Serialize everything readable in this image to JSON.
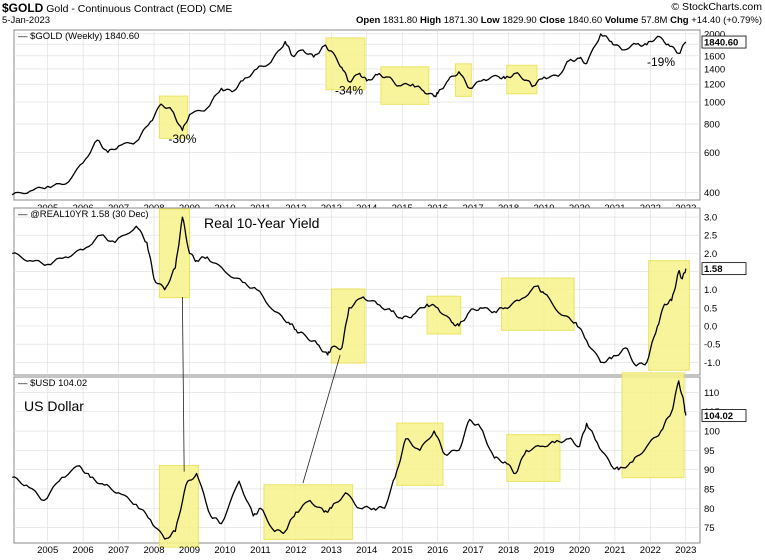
{
  "header": {
    "symbol": "$GOLD",
    "description": "Gold - Continuous Contract (EOD)",
    "exchange": "CME",
    "date": "5-Jan-2023",
    "open_label": "Open",
    "open": "1831.80",
    "high_label": "High",
    "high": "1871.30",
    "low_label": "Low",
    "low": "1829.90",
    "close_label": "Close",
    "close": "1840.60",
    "volume_label": "Volume",
    "volume": "57.8M",
    "chg_label": "Chg",
    "chg": "+14.40 (+0.79%)",
    "watermark": "© StockCharts.com"
  },
  "colors": {
    "line": "#000000",
    "highlight": "#f7f38a",
    "highlight_stroke": "#e8e04a",
    "grid": "#dddddd"
  },
  "chart_data": [
    {
      "type": "line",
      "legend": "$GOLD (Weekly) 1840.60",
      "last_value_label": "1840.60",
      "y_scale": "log",
      "ylim": [
        370,
        2080
      ],
      "y_ticks": [
        400,
        600,
        800,
        1000,
        1200,
        1400,
        1600,
        1800,
        2000
      ],
      "x_ticks": [
        2005,
        2006,
        2007,
        2008,
        2009,
        2010,
        2011,
        2012,
        2013,
        2014,
        2015,
        2016,
        2017,
        2018,
        2019,
        2020,
        2021,
        2022,
        2023
      ],
      "series": [
        {
          "points": [
            [
              2004.0,
              390
            ],
            [
              2004.5,
              405
            ],
            [
              2005.0,
              425
            ],
            [
              2005.5,
              435
            ],
            [
              2006.0,
              540
            ],
            [
              2006.4,
              680
            ],
            [
              2006.7,
              600
            ],
            [
              2007.0,
              640
            ],
            [
              2007.5,
              670
            ],
            [
              2007.9,
              820
            ],
            [
              2008.2,
              980
            ],
            [
              2008.5,
              920
            ],
            [
              2008.8,
              750
            ],
            [
              2009.0,
              880
            ],
            [
              2009.5,
              940
            ],
            [
              2009.9,
              1150
            ],
            [
              2010.2,
              1110
            ],
            [
              2010.5,
              1240
            ],
            [
              2010.9,
              1400
            ],
            [
              2011.3,
              1500
            ],
            [
              2011.7,
              1850
            ],
            [
              2011.9,
              1600
            ],
            [
              2012.2,
              1700
            ],
            [
              2012.5,
              1580
            ],
            [
              2012.8,
              1770
            ],
            [
              2013.0,
              1680
            ],
            [
              2013.3,
              1420
            ],
            [
              2013.5,
              1230
            ],
            [
              2013.8,
              1340
            ],
            [
              2014.0,
              1240
            ],
            [
              2014.3,
              1320
            ],
            [
              2014.6,
              1290
            ],
            [
              2014.9,
              1180
            ],
            [
              2015.3,
              1200
            ],
            [
              2015.6,
              1120
            ],
            [
              2015.9,
              1060
            ],
            [
              2016.0,
              1090
            ],
            [
              2016.3,
              1250
            ],
            [
              2016.6,
              1360
            ],
            [
              2016.9,
              1150
            ],
            [
              2017.3,
              1260
            ],
            [
              2017.7,
              1300
            ],
            [
              2017.9,
              1270
            ],
            [
              2018.2,
              1340
            ],
            [
              2018.5,
              1250
            ],
            [
              2018.7,
              1180
            ],
            [
              2019.0,
              1290
            ],
            [
              2019.4,
              1300
            ],
            [
              2019.7,
              1520
            ],
            [
              2020.0,
              1560
            ],
            [
              2020.2,
              1480
            ],
            [
              2020.6,
              2000
            ],
            [
              2020.9,
              1850
            ],
            [
              2021.2,
              1700
            ],
            [
              2021.6,
              1800
            ],
            [
              2021.9,
              1790
            ],
            [
              2022.2,
              1950
            ],
            [
              2022.5,
              1800
            ],
            [
              2022.8,
              1640
            ],
            [
              2023.0,
              1840.6
            ]
          ]
        }
      ],
      "highlight_ranges": [
        [
          2008.15,
          2008.95
        ],
        [
          2012.85,
          2013.95
        ],
        [
          2014.4,
          2015.75
        ],
        [
          2016.5,
          2016.95
        ],
        [
          2017.95,
          2018.8
        ]
      ],
      "annotations": [
        {
          "text": "-30%",
          "x": 2008.8,
          "y": 660
        },
        {
          "text": "-34%",
          "x": 2013.5,
          "y": 1080
        },
        {
          "text": "-19%",
          "x": 2022.3,
          "y": 1440
        }
      ]
    },
    {
      "type": "line",
      "legend": "@REAL10YR 1.58 (30 Dec)",
      "title": "Real 10-Year Yield",
      "last_value_label": "1.58",
      "ylim": [
        -1.35,
        3.25
      ],
      "y_ticks": [
        -1.0,
        -0.5,
        0.0,
        0.5,
        1.0,
        1.5,
        2.0,
        2.5,
        3.0
      ],
      "x_ticks": [],
      "series": [
        {
          "points": [
            [
              2004.0,
              2.0
            ],
            [
              2004.5,
              1.8
            ],
            [
              2005.0,
              1.7
            ],
            [
              2005.5,
              1.9
            ],
            [
              2006.0,
              2.1
            ],
            [
              2006.5,
              2.5
            ],
            [
              2006.9,
              2.3
            ],
            [
              2007.5,
              2.75
            ],
            [
              2007.8,
              2.3
            ],
            [
              2008.0,
              1.3
            ],
            [
              2008.3,
              1.0
            ],
            [
              2008.6,
              1.6
            ],
            [
              2008.8,
              3.0
            ],
            [
              2009.0,
              2.0
            ],
            [
              2009.2,
              1.8
            ],
            [
              2009.5,
              1.9
            ],
            [
              2010.0,
              1.5
            ],
            [
              2010.5,
              1.2
            ],
            [
              2010.9,
              1.0
            ],
            [
              2011.4,
              0.4
            ],
            [
              2011.8,
              0.1
            ],
            [
              2012.0,
              -0.1
            ],
            [
              2012.3,
              -0.3
            ],
            [
              2012.6,
              -0.5
            ],
            [
              2012.9,
              -0.8
            ],
            [
              2013.0,
              -0.6
            ],
            [
              2013.3,
              -0.6
            ],
            [
              2013.5,
              0.5
            ],
            [
              2013.9,
              0.8
            ],
            [
              2014.3,
              0.6
            ],
            [
              2014.7,
              0.4
            ],
            [
              2015.0,
              0.2
            ],
            [
              2015.3,
              0.3
            ],
            [
              2015.7,
              0.6
            ],
            [
              2016.0,
              0.5
            ],
            [
              2016.4,
              0.1
            ],
            [
              2016.6,
              0.0
            ],
            [
              2016.9,
              0.4
            ],
            [
              2017.2,
              0.5
            ],
            [
              2017.6,
              0.4
            ],
            [
              2017.9,
              0.5
            ],
            [
              2018.3,
              0.7
            ],
            [
              2018.8,
              1.1
            ],
            [
              2019.0,
              0.9
            ],
            [
              2019.5,
              0.3
            ],
            [
              2019.9,
              0.1
            ],
            [
              2020.2,
              -0.4
            ],
            [
              2020.6,
              -1.0
            ],
            [
              2020.9,
              -0.9
            ],
            [
              2021.3,
              -0.6
            ],
            [
              2021.6,
              -1.1
            ],
            [
              2021.9,
              -1.0
            ],
            [
              2022.2,
              0.0
            ],
            [
              2022.4,
              0.6
            ],
            [
              2022.6,
              0.7
            ],
            [
              2022.8,
              1.5
            ],
            [
              2022.9,
              1.3
            ],
            [
              2023.0,
              1.58
            ]
          ]
        }
      ],
      "highlight_ranges": [
        [
          2008.15,
          2009.0
        ],
        [
          2013.0,
          2013.95
        ],
        [
          2015.7,
          2016.65
        ],
        [
          2017.8,
          2019.85
        ],
        [
          2021.95,
          2023.1
        ]
      ],
      "annotations": []
    },
    {
      "type": "line",
      "legend": "$USD 104.02",
      "title": "US Dollar",
      "last_value_label": "104.02",
      "ylim": [
        71,
        114
      ],
      "y_ticks": [
        75,
        80,
        85,
        90,
        95,
        100,
        105,
        110
      ],
      "x_ticks": [
        2005,
        2006,
        2007,
        2008,
        2009,
        2010,
        2011,
        2012,
        2013,
        2014,
        2015,
        2016,
        2017,
        2018,
        2019,
        2020,
        2021,
        2022,
        2023
      ],
      "series": [
        {
          "points": [
            [
              2004.0,
              88
            ],
            [
              2004.4,
              86
            ],
            [
              2004.9,
              82
            ],
            [
              2005.4,
              88
            ],
            [
              2005.9,
              91
            ],
            [
              2006.2,
              88
            ],
            [
              2006.6,
              86
            ],
            [
              2007.0,
              84
            ],
            [
              2007.5,
              81
            ],
            [
              2007.9,
              77
            ],
            [
              2008.3,
              72
            ],
            [
              2008.6,
              74
            ],
            [
              2008.9,
              86
            ],
            [
              2009.2,
              89
            ],
            [
              2009.6,
              78
            ],
            [
              2009.9,
              76
            ],
            [
              2010.4,
              87
            ],
            [
              2010.8,
              78
            ],
            [
              2011.0,
              80
            ],
            [
              2011.4,
              74
            ],
            [
              2011.7,
              74
            ],
            [
              2012.0,
              79
            ],
            [
              2012.4,
              82
            ],
            [
              2012.8,
              79
            ],
            [
              2013.0,
              80
            ],
            [
              2013.4,
              84
            ],
            [
              2013.8,
              80
            ],
            [
              2014.2,
              80
            ],
            [
              2014.5,
              80
            ],
            [
              2014.8,
              88
            ],
            [
              2015.1,
              98
            ],
            [
              2015.5,
              95
            ],
            [
              2015.9,
              100
            ],
            [
              2016.2,
              94
            ],
            [
              2016.6,
              95
            ],
            [
              2016.9,
              103
            ],
            [
              2017.2,
              101
            ],
            [
              2017.6,
              93
            ],
            [
              2017.9,
              92
            ],
            [
              2018.2,
              89
            ],
            [
              2018.5,
              95
            ],
            [
              2018.9,
              96
            ],
            [
              2019.3,
              97
            ],
            [
              2019.7,
              98
            ],
            [
              2020.0,
              96
            ],
            [
              2020.2,
              102
            ],
            [
              2020.5,
              97
            ],
            [
              2020.9,
              91
            ],
            [
              2021.1,
              90
            ],
            [
              2021.5,
              92
            ],
            [
              2021.9,
              96
            ],
            [
              2022.3,
              100
            ],
            [
              2022.6,
              105
            ],
            [
              2022.8,
              113
            ],
            [
              2022.95,
              107
            ],
            [
              2023.0,
              104.02
            ]
          ]
        }
      ],
      "highlight_ranges": [
        [
          2008.15,
          2009.25
        ],
        [
          2011.1,
          2013.6
        ],
        [
          2014.85,
          2016.15
        ],
        [
          2017.95,
          2019.45
        ],
        [
          2021.2,
          2022.95
        ]
      ],
      "annotations": []
    }
  ]
}
